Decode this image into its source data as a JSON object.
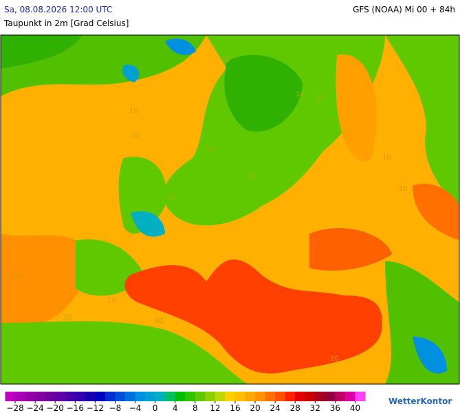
{
  "header": {
    "valid_time": "Sa, 08.08.2026 12:00 UTC",
    "model": "GFS (NOAA) Mi 00 + 84h",
    "parameter": "Taupunkt in 2m [Grad Celsius]"
  },
  "map": {
    "contour_labels": [
      "10",
      "10",
      "10",
      "10",
      "10",
      "10",
      "10",
      "10",
      "10",
      "20",
      "20",
      "20",
      "20",
      "10",
      "10"
    ]
  },
  "legend": {
    "range": [
      -30,
      42
    ],
    "ticks": [
      {
        "value": -28,
        "label": "−28"
      },
      {
        "value": -24,
        "label": "−24"
      },
      {
        "value": -20,
        "label": "−20"
      },
      {
        "value": -16,
        "label": "−16"
      },
      {
        "value": -12,
        "label": "−12"
      },
      {
        "value": -8,
        "label": "−8"
      },
      {
        "value": -4,
        "label": "−4"
      },
      0,
      4,
      8,
      12,
      16,
      20,
      24,
      28,
      32,
      36,
      40
    ],
    "colors": [
      "#c000c0",
      "#a800b8",
      "#9400a8",
      "#8000a0",
      "#7000a0",
      "#6000a8",
      "#4800a8",
      "#3000b0",
      "#1800b0",
      "#0000c0",
      "#0030d0",
      "#0050e0",
      "#0070e0",
      "#0090e0",
      "#00a0d0",
      "#00b0c0",
      "#00c060",
      "#00c000",
      "#30c400",
      "#60c800",
      "#90d000",
      "#c0d800",
      "#ffd000",
      "#ffbf00",
      "#ffa800",
      "#ff9000",
      "#ff7000",
      "#ff5000",
      "#ff2000",
      "#e00000",
      "#c80000",
      "#a80020",
      "#900040",
      "#c00060",
      "#e000a0",
      "#ff40ff"
    ]
  },
  "brand": "WetterKontor"
}
